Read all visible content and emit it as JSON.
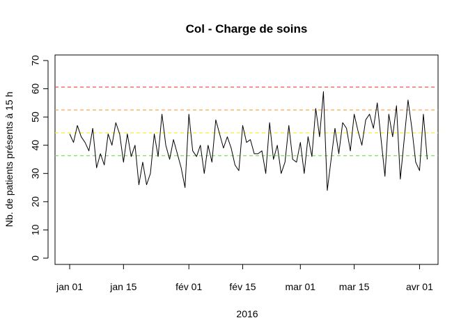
{
  "chart_data": {
    "type": "line",
    "title": "Col - Charge de soins",
    "xlabel": "2016",
    "ylabel": "Nb. de patients présents à 15 h",
    "ylim": [
      0,
      70
    ],
    "yticks": [
      "0",
      "10",
      "20",
      "30",
      "40",
      "50",
      "60",
      "70"
    ],
    "xlim": [
      "2015-12-30",
      "2016-04-04"
    ],
    "xticks": [
      {
        "date": "2016-01-01",
        "label": "jan 01"
      },
      {
        "date": "2016-01-15",
        "label": "jan 15"
      },
      {
        "date": "2016-02-01",
        "label": "fév 01"
      },
      {
        "date": "2016-02-15",
        "label": "fév 15"
      },
      {
        "date": "2016-03-01",
        "label": "mar 01"
      },
      {
        "date": "2016-03-15",
        "label": "mar 15"
      },
      {
        "date": "2016-04-01",
        "label": "avr 01"
      }
    ],
    "grid": false,
    "start_date": "2016-01-01",
    "series": [
      {
        "color": "#000000",
        "values": [
          44,
          41,
          47,
          43,
          41,
          38,
          46,
          32,
          37,
          33,
          44,
          40,
          48,
          44,
          34,
          44,
          36,
          40,
          26,
          34,
          26,
          30,
          44,
          36,
          51,
          40,
          35,
          42,
          37,
          32,
          25,
          51,
          38,
          36,
          40,
          30,
          40,
          34,
          49,
          44,
          39,
          43,
          39,
          33,
          31,
          47,
          41,
          42,
          37,
          37,
          38,
          30,
          48,
          35,
          40,
          30,
          34,
          47,
          35,
          34,
          41,
          30,
          43,
          36,
          53,
          43,
          59,
          24,
          35,
          46,
          37,
          48,
          46,
          38,
          51,
          45,
          40,
          49,
          51,
          46,
          55,
          42,
          29,
          51,
          43,
          54,
          28,
          42,
          56,
          46,
          34,
          31,
          51,
          35
        ]
      }
    ],
    "reference_lines": [
      {
        "y": 60.6,
        "color": "#f0554f",
        "style": "dashed"
      },
      {
        "y": 52.5,
        "color": "#f7a94a",
        "style": "dashed"
      },
      {
        "y": 44.4,
        "color": "#f2ef3a",
        "style": "dashed"
      },
      {
        "y": 36.3,
        "color": "#7edc5e",
        "style": "dashed"
      }
    ]
  }
}
